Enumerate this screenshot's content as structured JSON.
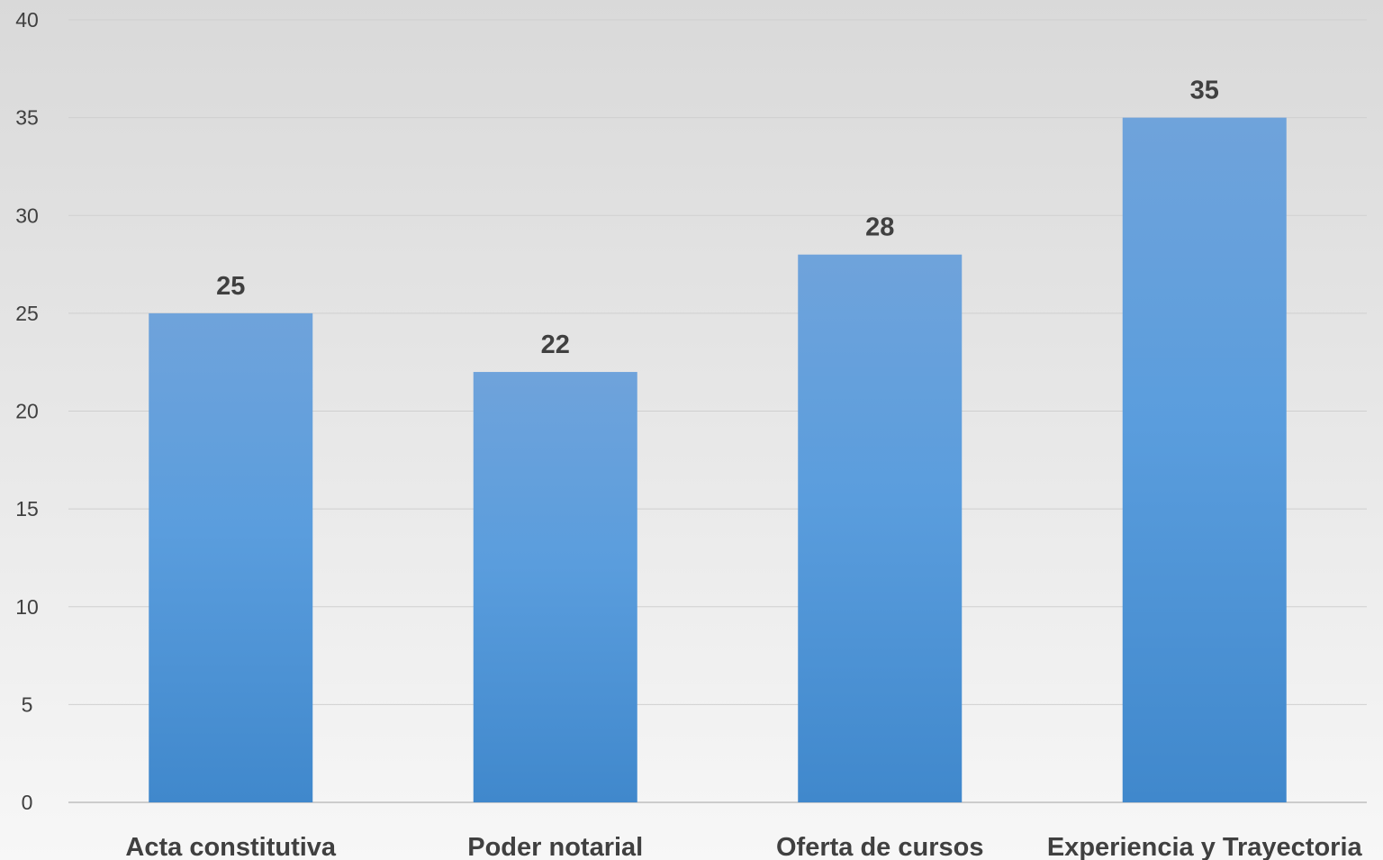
{
  "chart_data": {
    "type": "bar",
    "categories": [
      "Acta constitutiva",
      "Poder notarial",
      "Oferta de cursos",
      "Experiencia y Trayectoria"
    ],
    "values": [
      25,
      22,
      28,
      35
    ],
    "title": "",
    "xlabel": "",
    "ylabel": "",
    "ylim": [
      0,
      40
    ],
    "yticks": [
      0,
      5,
      10,
      15,
      20,
      25,
      30,
      35,
      40
    ],
    "grid": true,
    "data_labels": true,
    "bar_color_top": "#6fa3db",
    "bar_color_bottom": "#4088cc"
  }
}
